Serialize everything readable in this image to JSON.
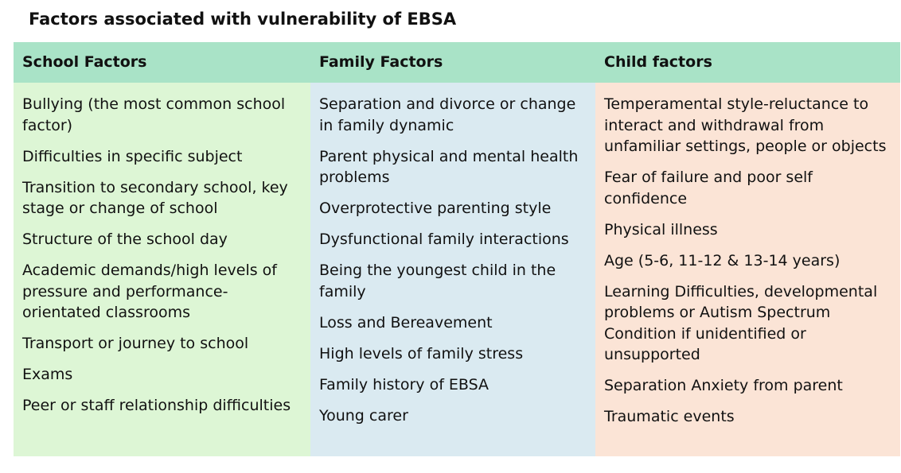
{
  "header": {
    "title": "Factors associated with vulnerability of EBSA"
  },
  "table": {
    "columns": [
      {
        "heading": "School Factors",
        "items": [
          "Bullying (the most common school factor)",
          "Difficulties in specific subject",
          "Transition to secondary school, key stage or change of school",
          "Structure of the school day",
          "Academic demands/high levels of pressure and performance-orientated classrooms",
          "Transport or journey to school",
          "Exams",
          "Peer or staff relationship difficulties"
        ]
      },
      {
        "heading": "Family Factors",
        "items": [
          "Separation and divorce or change in family dynamic",
          "Parent physical and mental health problems",
          "Overprotective parenting style",
          "Dysfunctional family interactions",
          "Being the youngest child in the family",
          "Loss and Bereavement",
          "High levels of family stress",
          "Family history of EBSA",
          "Young carer"
        ]
      },
      {
        "heading": "Child factors",
        "items": [
          "Temperamental style-reluctance to interact and withdrawal from unfamiliar settings, people or objects",
          "Fear of failure and poor self confidence",
          "Physical illness",
          "Age (5-6, 11-12 & 13-14 years)",
          "Learning Difficulties, developmental problems or Autism Spectrum Condition if unidentified or unsupported",
          "Separation Anxiety from parent",
          "Traumatic events"
        ]
      }
    ]
  }
}
